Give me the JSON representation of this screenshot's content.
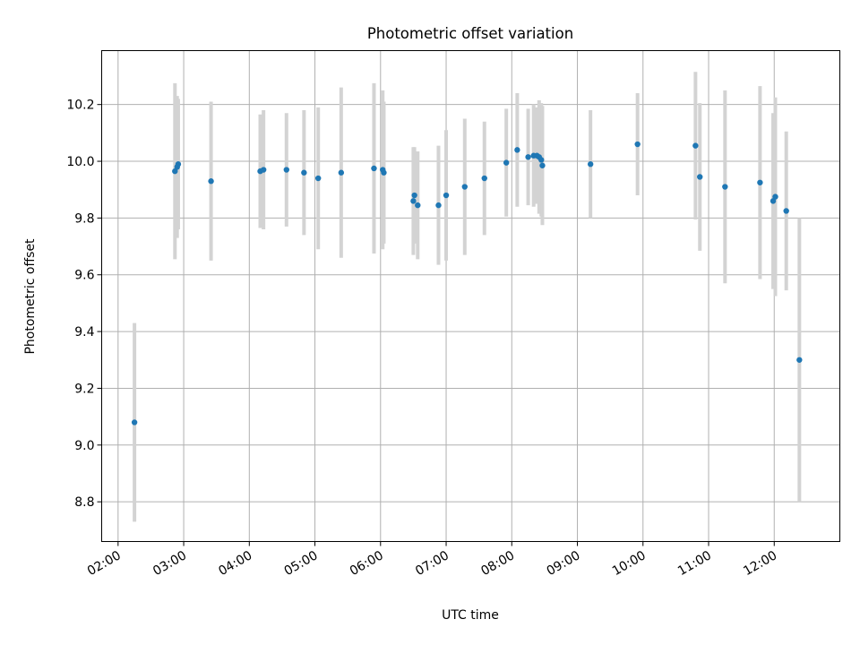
{
  "chart_data": {
    "type": "scatter",
    "title": "Photometric offset variation",
    "xlabel": "UTC time",
    "ylabel": "Photometric offset",
    "grid": true,
    "x_axis": "time",
    "xlim": [
      "01:45",
      "13:00"
    ],
    "ylim": [
      8.66,
      10.39
    ],
    "x_ticks": [
      "02:00",
      "03:00",
      "04:00",
      "05:00",
      "06:00",
      "07:00",
      "08:00",
      "09:00",
      "10:00",
      "11:00",
      "12:00"
    ],
    "y_ticks": [
      8.8,
      9.0,
      9.2,
      9.4,
      9.6,
      9.8,
      10.0,
      10.2
    ],
    "y_tick_labels": [
      "8.8",
      "9.0",
      "9.2",
      "9.4",
      "9.6",
      "9.8",
      "10.0",
      "10.2"
    ],
    "colors": {
      "point": "#1f77b4",
      "errorbar": "#d3d3d3"
    },
    "series": [
      {
        "points": [
          {
            "x": "02:15",
            "y": 9.08,
            "err": 0.35
          },
          {
            "x": "02:52",
            "y": 9.965,
            "err": 0.31
          },
          {
            "x": "02:54",
            "y": 9.98,
            "err": 0.25
          },
          {
            "x": "02:55",
            "y": 9.99,
            "err": 0.23
          },
          {
            "x": "03:25",
            "y": 9.93,
            "err": 0.28
          },
          {
            "x": "04:10",
            "y": 9.965,
            "err": 0.2
          },
          {
            "x": "04:13",
            "y": 9.97,
            "err": 0.21
          },
          {
            "x": "04:34",
            "y": 9.97,
            "err": 0.2
          },
          {
            "x": "04:50",
            "y": 9.96,
            "err": 0.22
          },
          {
            "x": "05:03",
            "y": 9.94,
            "err": 0.25
          },
          {
            "x": "05:24",
            "y": 9.96,
            "err": 0.3
          },
          {
            "x": "05:54",
            "y": 9.975,
            "err": 0.3
          },
          {
            "x": "06:02",
            "y": 9.97,
            "err": 0.28
          },
          {
            "x": "06:03",
            "y": 9.96,
            "err": 0.25
          },
          {
            "x": "06:30",
            "y": 9.86,
            "err": 0.19
          },
          {
            "x": "06:31",
            "y": 9.88,
            "err": 0.17
          },
          {
            "x": "06:34",
            "y": 9.845,
            "err": 0.19
          },
          {
            "x": "06:53",
            "y": 9.845,
            "err": 0.21
          },
          {
            "x": "07:00",
            "y": 9.88,
            "err": 0.23
          },
          {
            "x": "07:17",
            "y": 9.91,
            "err": 0.24
          },
          {
            "x": "07:35",
            "y": 9.94,
            "err": 0.2
          },
          {
            "x": "07:55",
            "y": 9.995,
            "err": 0.19
          },
          {
            "x": "08:05",
            "y": 10.04,
            "err": 0.2
          },
          {
            "x": "08:15",
            "y": 10.015,
            "err": 0.17
          },
          {
            "x": "08:20",
            "y": 10.02,
            "err": 0.18
          },
          {
            "x": "08:23",
            "y": 10.02,
            "err": 0.17
          },
          {
            "x": "08:25",
            "y": 10.015,
            "err": 0.2
          },
          {
            "x": "08:27",
            "y": 10.005,
            "err": 0.2
          },
          {
            "x": "08:28",
            "y": 9.985,
            "err": 0.21
          },
          {
            "x": "09:12",
            "y": 9.99,
            "err": 0.19
          },
          {
            "x": "09:55",
            "y": 10.06,
            "err": 0.18
          },
          {
            "x": "10:48",
            "y": 10.055,
            "err": 0.26
          },
          {
            "x": "10:52",
            "y": 9.945,
            "err": 0.26
          },
          {
            "x": "11:15",
            "y": 9.91,
            "err": 0.34
          },
          {
            "x": "11:47",
            "y": 9.925,
            "err": 0.34
          },
          {
            "x": "11:59",
            "y": 9.86,
            "err": 0.31
          },
          {
            "x": "12:01",
            "y": 9.875,
            "err": 0.35
          },
          {
            "x": "12:11",
            "y": 9.825,
            "err": 0.28
          },
          {
            "x": "12:23",
            "y": 9.3,
            "err": 0.5
          }
        ]
      }
    ]
  }
}
